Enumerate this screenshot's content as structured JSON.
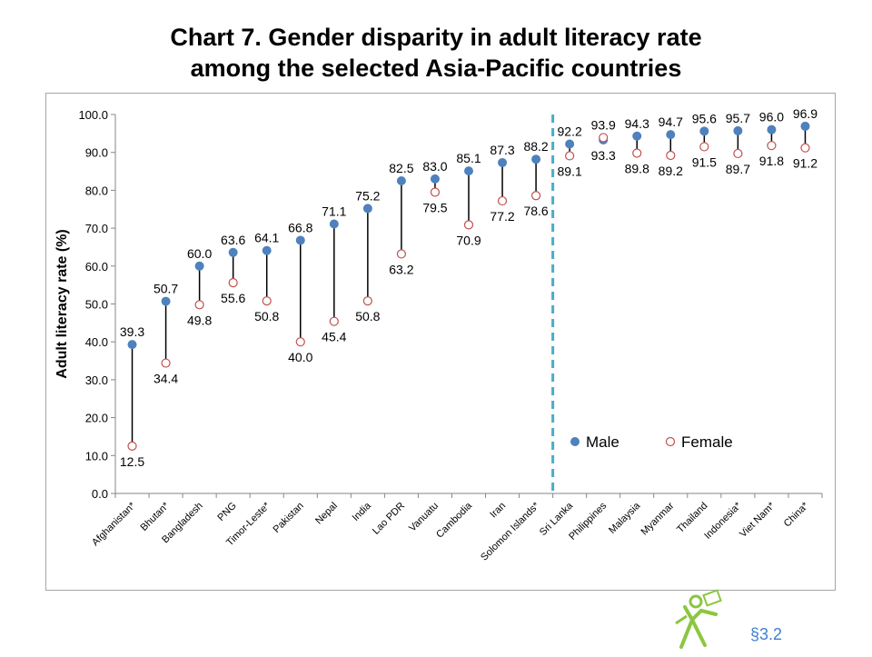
{
  "title": {
    "line1": "Chart 7.  Gender disparity in adult literacy rate",
    "line2": "among the selected Asia-Pacific countries"
  },
  "section_ref": "§3.2",
  "colors": {
    "male": "#4f81bd",
    "female": "#c0504d",
    "divider": "#4bacc6",
    "stem": "#000000"
  },
  "chart_data": {
    "type": "scatter",
    "title": "Chart 7.  Gender disparity in adult literacy rate among the selected Asia-Pacific countries",
    "ylabel": "Adult literacy rate (%)",
    "xlabel": "",
    "ylim": [
      0,
      100
    ],
    "yticks": [
      "0.0",
      "10.0",
      "20.0",
      "30.0",
      "40.0",
      "50.0",
      "60.0",
      "70.0",
      "80.0",
      "90.0",
      "100.0"
    ],
    "grid": false,
    "legend_position": "bottom-right",
    "categories": [
      "Afghanistan*",
      "Bhutan*",
      "Bangladesh",
      "PNG",
      "Timor-Leste*",
      "Pakistan",
      "Nepal",
      "India",
      "Lao PDR",
      "Vanuatu",
      "Cambodia",
      "Iran",
      "Solomon Islands*",
      "Sri Lanka",
      "Philippines",
      "Malaysia",
      "Myanmar",
      "Thailand",
      "Indonesia*",
      "Viet Nam*",
      "China*"
    ],
    "series": [
      {
        "name": "Male",
        "values": [
          39.3,
          50.7,
          60.0,
          63.6,
          64.1,
          66.8,
          71.1,
          75.2,
          82.5,
          83.0,
          85.1,
          87.3,
          88.2,
          92.2,
          93.3,
          94.3,
          94.7,
          95.6,
          95.7,
          96.0,
          96.9
        ],
        "labels": [
          "39.3",
          "50.7",
          "60.0",
          "63.6",
          "64.1",
          "66.8",
          "71.1",
          "75.2",
          "82.5",
          "83.0",
          "85.1",
          "87.3",
          "88.2",
          "92.2",
          "93.3",
          "94.3",
          "94.7",
          "95.6",
          "95.7",
          "96.0",
          "96.9"
        ]
      },
      {
        "name": "Female",
        "values": [
          12.5,
          34.4,
          49.8,
          55.6,
          50.8,
          40.0,
          45.4,
          50.8,
          63.2,
          79.5,
          70.9,
          77.2,
          78.6,
          89.1,
          93.9,
          89.8,
          89.2,
          91.5,
          89.7,
          91.8,
          91.2
        ],
        "labels": [
          "12.5",
          "34.4",
          "49.8",
          "55.6",
          "50.8",
          "40.0",
          "45.4",
          "50.8",
          "63.2",
          "79.5",
          "70.9",
          "77.2",
          "78.6",
          "89.1",
          "93.9",
          "89.8",
          "89.2",
          "91.5",
          "89.7",
          "91.8",
          "91.2"
        ]
      }
    ],
    "divider_after": "Solomon Islands*"
  }
}
